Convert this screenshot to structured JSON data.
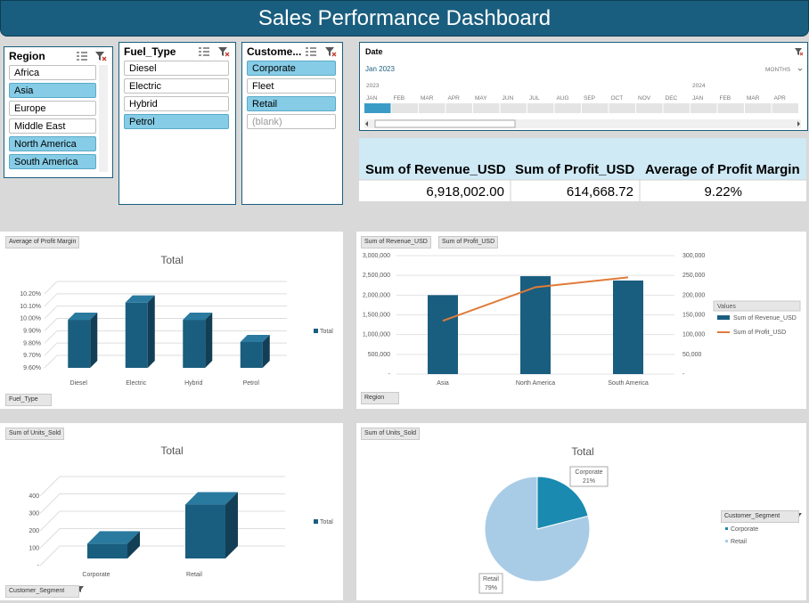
{
  "title": "Sales Performance Dashboard",
  "slicers": {
    "region": {
      "header": "Region",
      "items": [
        {
          "label": "Africa",
          "selected": false
        },
        {
          "label": "Asia",
          "selected": true
        },
        {
          "label": "Europe",
          "selected": false
        },
        {
          "label": "Middle East",
          "selected": false
        },
        {
          "label": "North America",
          "selected": true
        },
        {
          "label": "South America",
          "selected": true
        }
      ]
    },
    "fuel": {
      "header": "Fuel_Type",
      "items": [
        {
          "label": "Diesel",
          "selected": false
        },
        {
          "label": "Electric",
          "selected": false
        },
        {
          "label": "Hybrid",
          "selected": false
        },
        {
          "label": "Petrol",
          "selected": true
        }
      ]
    },
    "customer": {
      "header": "Custome...",
      "items": [
        {
          "label": "Corporate",
          "selected": true
        },
        {
          "label": "Fleet",
          "selected": false
        },
        {
          "label": "Retail",
          "selected": true
        },
        {
          "label": "(blank)",
          "selected": false
        }
      ]
    }
  },
  "timeline": {
    "header": "Date",
    "range_label": "Jan 2023",
    "level": "MONTHS",
    "years": [
      "2023",
      "2024"
    ],
    "months": [
      "JAN",
      "FEB",
      "MAR",
      "APR",
      "MAY",
      "JUN",
      "JUL",
      "AUG",
      "SEP",
      "OCT",
      "NOV",
      "DEC",
      "JAN",
      "FEB",
      "MAR",
      "APR"
    ]
  },
  "kpi": {
    "headers": [
      "Sum of Revenue_USD",
      "Sum of Profit_USD",
      "Average of Profit Margin"
    ],
    "values": [
      "6,918,002.00",
      "614,668.72",
      "9.22%"
    ]
  },
  "colors": {
    "bar": "#1a5e7f",
    "bar_dark": "#123f56",
    "line": "#e07b39",
    "pie_corporate": "#1a8ab0",
    "pie_retail": "#a9cce6",
    "selected": "#86cce6"
  },
  "icons": {
    "multiselect": "multi-select-icon",
    "clear": "clear-filter-icon",
    "filter": "filter-dropdown-icon"
  },
  "charts": {
    "margin": {
      "field_button": "Average of Profit Margin",
      "axis_button": "Fuel_Type",
      "legend": "Total",
      "chart_data": {
        "type": "bar",
        "title": "Total",
        "categories": [
          "Diesel",
          "Electric",
          "Hybrid",
          "Petrol"
        ],
        "values": [
          9.99,
          10.13,
          9.99,
          9.81
        ],
        "yticks": [
          "9.60%",
          "9.70%",
          "9.80%",
          "9.90%",
          "10.00%",
          "10.10%",
          "10.20%"
        ],
        "ylim": [
          9.6,
          10.2
        ],
        "legend": "right"
      }
    },
    "revenue": {
      "field_buttons": [
        "Sum of Revenue_USD",
        "Sum of Profit_USD"
      ],
      "axis_button": "Region",
      "legend_title": "Values",
      "chart_data": {
        "type": "bar",
        "categories": [
          "Asia",
          "North America",
          "South America"
        ],
        "series": [
          {
            "name": "Sum of Revenue_USD",
            "type": "bar",
            "values": [
              2000000,
              2480000,
              2370000
            ]
          },
          {
            "name": "Sum of Profit_USD",
            "type": "line",
            "values": [
              135000,
              220000,
              245000
            ]
          }
        ],
        "yticks_left": [
          "-",
          "500,000",
          "1,000,000",
          "1,500,000",
          "2,000,000",
          "2,500,000",
          "3,000,000"
        ],
        "yticks_right": [
          "-",
          "50,000",
          "100,000",
          "150,000",
          "200,000",
          "250,000",
          "300,000"
        ],
        "ylim_left": [
          0,
          3000000
        ],
        "ylim_right": [
          0,
          300000
        ],
        "legend": "right"
      }
    },
    "units": {
      "field_button": "Sum of Units_Sold",
      "axis_button": "Customer_Segment",
      "legend": "Total",
      "chart_data": {
        "type": "bar",
        "title": "Total",
        "categories": [
          "Corporate",
          "Retail"
        ],
        "values": [
          85,
          310
        ],
        "yticks": [
          "-",
          "100",
          "200",
          "300",
          "400"
        ],
        "ylim": [
          0,
          400
        ],
        "legend": "right"
      }
    },
    "pie": {
      "field_button": "Sum of Units_Sold",
      "legend_button": "Customer_Segment",
      "chart_data": {
        "type": "pie",
        "title": "Total",
        "labels": [
          "Corporate",
          "Retail"
        ],
        "values": [
          21,
          79
        ],
        "data_labels": [
          "21%",
          "79%"
        ],
        "legend": "right"
      }
    }
  }
}
